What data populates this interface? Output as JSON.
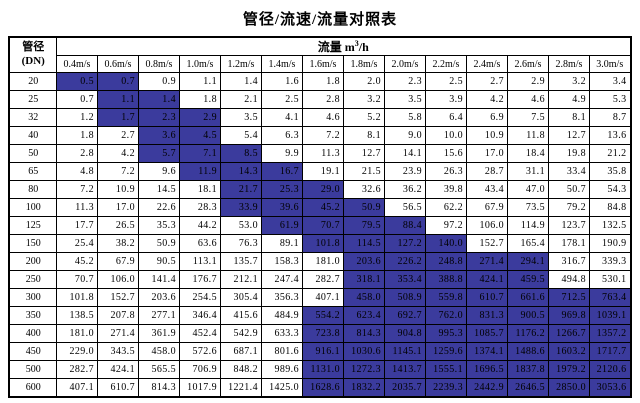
{
  "title": "管径/流速/流量对照表",
  "colors": {
    "highlight": "#3b3b9d",
    "border": "#000000"
  },
  "table": {
    "corner_header": {
      "line1": "管径",
      "line2": "(DN)"
    },
    "flow_header": {
      "label": "流量",
      "unit_base": "m",
      "unit_sup": "3",
      "unit_rest": "/h"
    },
    "velocity_headers": [
      "0.4m/s",
      "0.6m/s",
      "0.8m/s",
      "1.0m/s",
      "1.2m/s",
      "1.4m/s",
      "1.6m/s",
      "1.8m/s",
      "2.0m/s",
      "2.2m/s",
      "2.4m/s",
      "2.6m/s",
      "2.8m/s",
      "3.0m/s"
    ],
    "rows": [
      {
        "dn": "20",
        "hl": [
          0,
          1
        ],
        "values": [
          "0.5",
          "0.7",
          "0.9",
          "1.1",
          "1.4",
          "1.6",
          "1.8",
          "2.0",
          "2.3",
          "2.5",
          "2.7",
          "2.9",
          "3.2",
          "3.4"
        ]
      },
      {
        "dn": "25",
        "hl": [
          1,
          2
        ],
        "values": [
          "0.7",
          "1.1",
          "1.4",
          "1.8",
          "2.1",
          "2.5",
          "2.8",
          "3.2",
          "3.5",
          "3.9",
          "4.2",
          "4.6",
          "4.9",
          "5.3"
        ]
      },
      {
        "dn": "32",
        "hl": [
          1,
          3
        ],
        "values": [
          "1.2",
          "1.7",
          "2.3",
          "2.9",
          "3.5",
          "4.1",
          "4.6",
          "5.2",
          "5.8",
          "6.4",
          "6.9",
          "7.5",
          "8.1",
          "8.7"
        ]
      },
      {
        "dn": "40",
        "hl": [
          2,
          3
        ],
        "values": [
          "1.8",
          "2.7",
          "3.6",
          "4.5",
          "5.4",
          "6.3",
          "7.2",
          "8.1",
          "9.0",
          "10.0",
          "10.9",
          "11.8",
          "12.7",
          "13.6"
        ]
      },
      {
        "dn": "50",
        "hl": [
          2,
          4
        ],
        "values": [
          "2.8",
          "4.2",
          "5.7",
          "7.1",
          "8.5",
          "9.9",
          "11.3",
          "12.7",
          "14.1",
          "15.6",
          "17.0",
          "18.4",
          "19.8",
          "21.2"
        ]
      },
      {
        "dn": "65",
        "hl": [
          3,
          5
        ],
        "values": [
          "4.8",
          "7.2",
          "9.6",
          "11.9",
          "14.3",
          "16.7",
          "19.1",
          "21.5",
          "23.9",
          "26.3",
          "28.7",
          "31.1",
          "33.4",
          "35.8"
        ]
      },
      {
        "dn": "80",
        "hl": [
          4,
          6
        ],
        "values": [
          "7.2",
          "10.9",
          "14.5",
          "18.1",
          "21.7",
          "25.3",
          "29.0",
          "32.6",
          "36.2",
          "39.8",
          "43.4",
          "47.0",
          "50.7",
          "54.3"
        ]
      },
      {
        "dn": "100",
        "hl": [
          4,
          7
        ],
        "values": [
          "11.3",
          "17.0",
          "22.6",
          "28.3",
          "33.9",
          "39.6",
          "45.2",
          "50.9",
          "56.5",
          "62.2",
          "67.9",
          "73.5",
          "79.2",
          "84.8"
        ]
      },
      {
        "dn": "125",
        "hl": [
          5,
          8
        ],
        "values": [
          "17.7",
          "26.5",
          "35.3",
          "44.2",
          "53.0",
          "61.9",
          "70.7",
          "79.5",
          "88.4",
          "97.2",
          "106.0",
          "114.9",
          "123.7",
          "132.5"
        ]
      },
      {
        "dn": "150",
        "hl": [
          6,
          9
        ],
        "values": [
          "25.4",
          "38.2",
          "50.9",
          "63.6",
          "76.3",
          "89.1",
          "101.8",
          "114.5",
          "127.2",
          "140.0",
          "152.7",
          "165.4",
          "178.1",
          "190.9"
        ]
      },
      {
        "dn": "200",
        "hl": [
          7,
          11
        ],
        "values": [
          "45.2",
          "67.9",
          "90.5",
          "113.1",
          "135.7",
          "158.3",
          "181.0",
          "203.6",
          "226.2",
          "248.8",
          "271.4",
          "294.1",
          "316.7",
          "339.3"
        ]
      },
      {
        "dn": "250",
        "hl": [
          7,
          11
        ],
        "values": [
          "70.7",
          "106.0",
          "141.4",
          "176.7",
          "212.1",
          "247.4",
          "282.7",
          "318.1",
          "353.4",
          "388.8",
          "424.1",
          "459.5",
          "494.8",
          "530.1"
        ]
      },
      {
        "dn": "300",
        "hl": [
          7,
          13
        ],
        "values": [
          "101.8",
          "152.7",
          "203.6",
          "254.5",
          "305.4",
          "356.3",
          "407.1",
          "458.0",
          "508.9",
          "559.8",
          "610.7",
          "661.6",
          "712.5",
          "763.4"
        ]
      },
      {
        "dn": "350",
        "hl": [
          6,
          13
        ],
        "values": [
          "138.5",
          "207.8",
          "277.1",
          "346.4",
          "415.6",
          "484.9",
          "554.2",
          "623.4",
          "692.7",
          "762.0",
          "831.3",
          "900.5",
          "969.8",
          "1039.1"
        ]
      },
      {
        "dn": "400",
        "hl": [
          6,
          13
        ],
        "values": [
          "181.0",
          "271.4",
          "361.9",
          "452.4",
          "542.9",
          "633.3",
          "723.8",
          "814.3",
          "904.8",
          "995.3",
          "1085.7",
          "1176.2",
          "1266.7",
          "1357.2"
        ]
      },
      {
        "dn": "450",
        "hl": [
          6,
          13
        ],
        "values": [
          "229.0",
          "343.5",
          "458.0",
          "572.6",
          "687.1",
          "801.6",
          "916.1",
          "1030.6",
          "1145.1",
          "1259.6",
          "1374.1",
          "1488.6",
          "1603.2",
          "1717.7"
        ]
      },
      {
        "dn": "500",
        "hl": [
          6,
          13
        ],
        "values": [
          "282.7",
          "424.1",
          "565.5",
          "706.9",
          "848.2",
          "989.6",
          "1131.0",
          "1272.3",
          "1413.7",
          "1555.1",
          "1696.5",
          "1837.8",
          "1979.2",
          "2120.6"
        ]
      },
      {
        "dn": "600",
        "hl": [
          6,
          13
        ],
        "values": [
          "407.1",
          "610.7",
          "814.3",
          "1017.9",
          "1221.4",
          "1425.0",
          "1628.6",
          "1832.2",
          "2035.7",
          "2239.3",
          "2442.9",
          "2646.5",
          "2850.0",
          "3053.6"
        ]
      }
    ]
  }
}
